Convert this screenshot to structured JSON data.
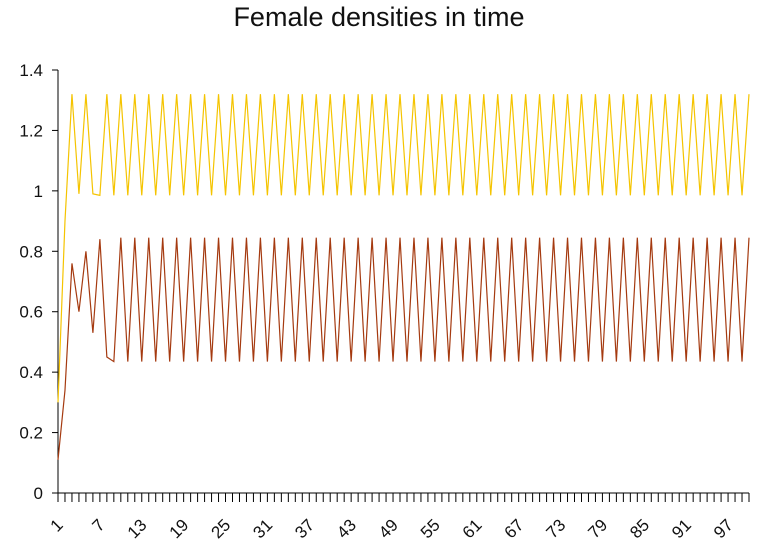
{
  "chart_data": {
    "type": "line",
    "title": "Female densities in time",
    "xlabel": "",
    "ylabel": "",
    "x_start": 1,
    "x_end": 100,
    "ylim": [
      0,
      1.4
    ],
    "yticks": [
      "0",
      "0.2",
      "0.4",
      "0.6",
      "0.8",
      "1",
      "1.2",
      "1.4"
    ],
    "xtick_labels": [
      "1",
      "7",
      "13",
      "19",
      "25",
      "31",
      "37",
      "43",
      "49",
      "55",
      "61",
      "67",
      "73",
      "79",
      "85",
      "91",
      "97"
    ],
    "grid": false,
    "legend": "none",
    "series": [
      {
        "color": "#f5c400",
        "initial_values": [
          0.3,
          0.9,
          1.32,
          0.99,
          1.32,
          0.99
        ],
        "high": 1.32,
        "low": 0.985
      },
      {
        "color": "#a53a10",
        "initial_values": [
          0.11,
          0.34,
          0.76,
          0.6,
          0.8,
          0.53,
          0.84,
          0.45
        ],
        "high": 0.845,
        "low": 0.435
      }
    ]
  }
}
